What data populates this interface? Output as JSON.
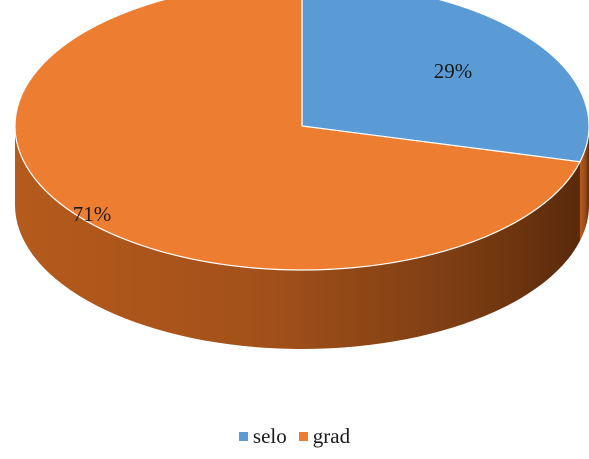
{
  "chart_data": {
    "type": "pie",
    "style": "3d",
    "categories": [
      "selo",
      "grad"
    ],
    "values": [
      29,
      71
    ],
    "data_labels": [
      "29%",
      "71%"
    ],
    "colors": [
      "#5B9BD5",
      "#ED7D31"
    ],
    "legend_position": "bottom"
  }
}
